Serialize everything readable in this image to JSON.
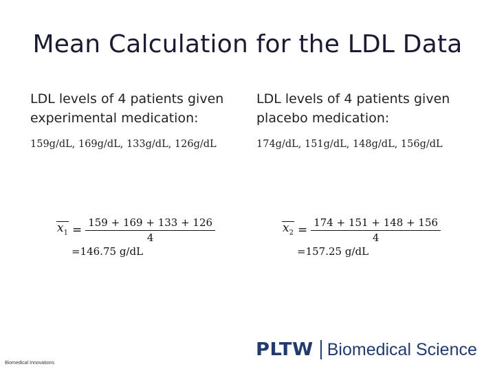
{
  "slide": {
    "title": "Mean Calculation for the LDL Data"
  },
  "left": {
    "heading_line1": "LDL levels of 4 patients given",
    "heading_line2": "experimental medication:",
    "values": "159g/dL, 169g/dL, 133g/dL, 126g/dL",
    "formula": {
      "symbol": "x",
      "subscript": "1",
      "equals": "=",
      "numerator": "159 + 169 + 133 + 126",
      "denominator": "4",
      "result": "=146.75 g/dL"
    }
  },
  "right": {
    "heading_line1": "LDL levels of 4 patients given",
    "heading_line2": "placebo medication:",
    "values": "174g/dL, 151g/dL, 148g/dL, 156g/dL",
    "formula": {
      "symbol": "x",
      "subscript": "2",
      "equals": "=",
      "numerator": "174 + 151 + 148 + 156",
      "denominator": "4",
      "result": "=157.25 g/dL"
    }
  },
  "footer": {
    "left_text": "Biomedical Innovations",
    "logo_mark": "PLTW",
    "logo_text": "Biomedical Science"
  },
  "colors": {
    "title": "#1a1a33",
    "logo": "#223b6e"
  }
}
